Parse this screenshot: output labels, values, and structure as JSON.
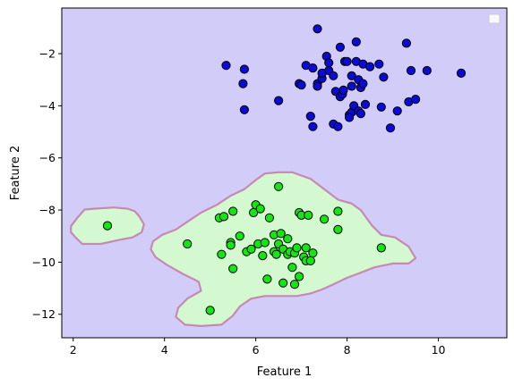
{
  "chart_data": {
    "type": "scatter",
    "title": "",
    "xlabel": "Feature 1",
    "ylabel": "Feature 2",
    "xlim": [
      1.75,
      11.5
    ],
    "ylim": [
      -12.9,
      -0.25
    ],
    "xticks": [
      2,
      4,
      6,
      8,
      10
    ],
    "yticks": [
      -12,
      -10,
      -8,
      -6,
      -4,
      -2
    ],
    "grid": false,
    "legend": {
      "placement": "top-right",
      "entries": [
        ""
      ]
    },
    "colors": {
      "background_region": "#d2cdf8",
      "decision_region": "#d4f8d0",
      "decision_boundary": "#c58ab2",
      "series_blue": "#0b0bd6",
      "series_green": "#14e614",
      "marker_edge": "#000000"
    },
    "decision_regions": [
      [
        [
          1.95,
          -8.62
        ],
        [
          2.1,
          -8.28
        ],
        [
          2.25,
          -7.98
        ],
        [
          2.45,
          -7.95
        ],
        [
          2.9,
          -7.9
        ],
        [
          3.2,
          -7.95
        ],
        [
          3.35,
          -8.05
        ],
        [
          3.45,
          -8.25
        ],
        [
          3.55,
          -8.55
        ],
        [
          3.5,
          -8.85
        ],
        [
          3.3,
          -9.05
        ],
        [
          3.0,
          -9.15
        ],
        [
          2.6,
          -9.3
        ],
        [
          2.2,
          -9.3
        ],
        [
          2.05,
          -9.05
        ],
        [
          1.95,
          -8.85
        ]
      ],
      [
        [
          3.75,
          -9.2
        ],
        [
          3.95,
          -8.95
        ],
        [
          4.25,
          -8.75
        ],
        [
          4.5,
          -8.45
        ],
        [
          4.8,
          -8.1
        ],
        [
          5.15,
          -7.8
        ],
        [
          5.45,
          -7.45
        ],
        [
          5.75,
          -7.2
        ],
        [
          6.0,
          -6.85
        ],
        [
          6.2,
          -6.6
        ],
        [
          6.5,
          -6.55
        ],
        [
          6.8,
          -6.55
        ],
        [
          7.2,
          -6.8
        ],
        [
          7.5,
          -7.2
        ],
        [
          7.8,
          -7.6
        ],
        [
          8.1,
          -7.75
        ],
        [
          8.3,
          -8.0
        ],
        [
          8.55,
          -8.6
        ],
        [
          8.75,
          -8.95
        ],
        [
          9.05,
          -9.05
        ],
        [
          9.35,
          -9.4
        ],
        [
          9.5,
          -9.85
        ],
        [
          9.35,
          -10.05
        ],
        [
          9.0,
          -10.05
        ],
        [
          8.6,
          -10.2
        ],
        [
          8.3,
          -10.4
        ],
        [
          8.0,
          -10.6
        ],
        [
          7.7,
          -10.85
        ],
        [
          7.45,
          -11.05
        ],
        [
          7.2,
          -11.2
        ],
        [
          6.9,
          -11.3
        ],
        [
          6.55,
          -11.3
        ],
        [
          6.2,
          -11.3
        ],
        [
          5.9,
          -11.4
        ],
        [
          5.65,
          -11.7
        ],
        [
          5.5,
          -12.05
        ],
        [
          5.25,
          -12.4
        ],
        [
          4.8,
          -12.45
        ],
        [
          4.45,
          -12.4
        ],
        [
          4.25,
          -12.1
        ],
        [
          4.3,
          -11.75
        ],
        [
          4.5,
          -11.4
        ],
        [
          4.8,
          -11.1
        ],
        [
          4.75,
          -10.75
        ],
        [
          4.4,
          -10.45
        ],
        [
          4.05,
          -10.1
        ],
        [
          3.8,
          -9.8
        ],
        [
          3.7,
          -9.5
        ]
      ]
    ],
    "series": [
      {
        "x": [
          7.35,
          5.35,
          5.75,
          5.72,
          5.75,
          6.5,
          6.95,
          7.1,
          7.25,
          7.35,
          7.35,
          7.45,
          7.6,
          7.7,
          7.75,
          7.85,
          7.9,
          7.92,
          7.95,
          8.05,
          8.1,
          8.15,
          8.2,
          8.2,
          8.25,
          8.3,
          8.35,
          8.4,
          8.5,
          8.7,
          8.75,
          8.8,
          8.95,
          9.1,
          9.3,
          9.35,
          9.4,
          9.5,
          9.75,
          7.0,
          7.2,
          7.25,
          7.45,
          7.55,
          7.6,
          7.7,
          7.8,
          7.85,
          8.0,
          8.05,
          8.1,
          8.25,
          8.3,
          8.35,
          10.5,
          8.1
        ],
        "y": [
          -1.05,
          -2.45,
          -2.6,
          -3.15,
          -4.15,
          -3.8,
          -3.15,
          -2.45,
          -2.55,
          -3.15,
          -3.25,
          -2.95,
          -2.65,
          -2.85,
          -3.45,
          -3.65,
          -3.55,
          -3.4,
          -2.3,
          -4.35,
          -4.25,
          -4.0,
          -2.3,
          -1.55,
          -4.2,
          -4.3,
          -2.4,
          -3.95,
          -2.5,
          -2.4,
          -4.05,
          -2.9,
          -4.85,
          -4.2,
          -1.6,
          -3.85,
          -2.65,
          -3.75,
          -2.65,
          -3.2,
          -4.4,
          -4.8,
          -2.75,
          -2.1,
          -2.35,
          -4.7,
          -4.8,
          -1.75,
          -2.3,
          -4.45,
          -3.25,
          -3.0,
          -3.3,
          -3.15,
          -2.75,
          -2.85
        ],
        "color": "#0b0bd6"
      },
      {
        "x": [
          2.75,
          4.5,
          5.0,
          5.2,
          5.25,
          5.3,
          5.45,
          5.45,
          5.5,
          5.5,
          5.65,
          5.8,
          5.9,
          5.95,
          6.0,
          6.05,
          6.1,
          6.15,
          6.2,
          6.25,
          6.3,
          6.4,
          6.4,
          6.45,
          6.5,
          6.5,
          6.55,
          6.6,
          6.6,
          6.7,
          6.7,
          6.75,
          6.8,
          6.85,
          6.85,
          6.9,
          6.95,
          7.0,
          7.05,
          7.1,
          7.1,
          7.2,
          7.25,
          7.5,
          7.8,
          7.8,
          8.75,
          6.95,
          7.15
        ],
        "y": [
          -8.6,
          -9.3,
          -11.85,
          -8.3,
          -9.7,
          -8.25,
          -9.25,
          -9.35,
          -10.25,
          -8.05,
          -9.0,
          -9.6,
          -9.5,
          -8.1,
          -7.8,
          -9.3,
          -7.95,
          -9.75,
          -9.25,
          -10.65,
          -8.3,
          -8.95,
          -9.6,
          -9.7,
          -9.3,
          -7.1,
          -8.9,
          -10.8,
          -9.5,
          -9.7,
          -9.1,
          -9.6,
          -10.2,
          -9.65,
          -10.85,
          -9.45,
          -8.1,
          -8.2,
          -9.8,
          -9.95,
          -9.45,
          -9.95,
          -9.65,
          -8.35,
          -8.05,
          -8.75,
          -9.45,
          -10.55,
          -8.2
        ],
        "color": "#14e614"
      }
    ]
  }
}
